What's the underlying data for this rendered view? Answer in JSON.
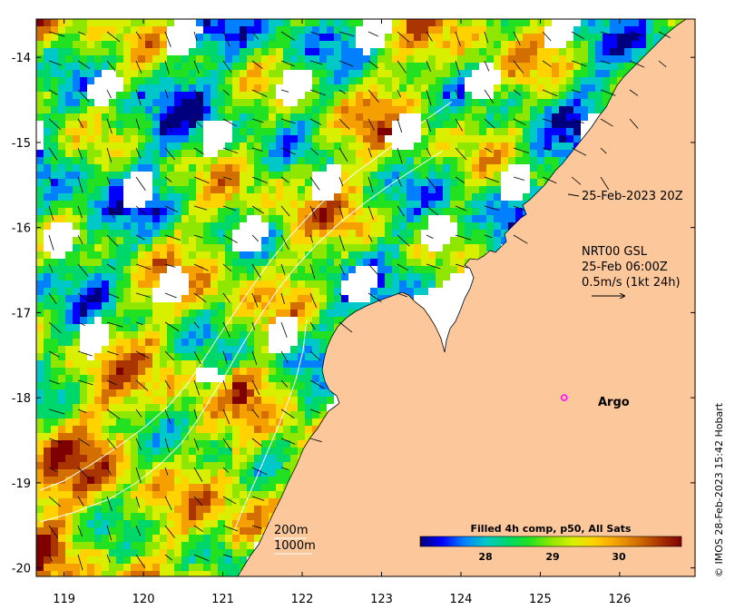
{
  "map": {
    "x_axis": {
      "ticks": [
        {
          "value": 119,
          "label": "119"
        },
        {
          "value": 120,
          "label": "120"
        },
        {
          "value": 121,
          "label": "121"
        },
        {
          "value": 122,
          "label": "122"
        },
        {
          "value": 123,
          "label": "123"
        },
        {
          "value": 124,
          "label": "124"
        },
        {
          "value": 125,
          "label": "125"
        },
        {
          "value": 126,
          "label": "126"
        }
      ],
      "range": [
        118.65,
        126.95
      ]
    },
    "y_axis": {
      "ticks": [
        {
          "value": -14,
          "label": "-14"
        },
        {
          "value": -15,
          "label": "-15"
        },
        {
          "value": -16,
          "label": "-16"
        },
        {
          "value": -17,
          "label": "-17"
        },
        {
          "value": -18,
          "label": "-18"
        },
        {
          "value": -19,
          "label": "-19"
        },
        {
          "value": -20,
          "label": "-20"
        }
      ],
      "range": [
        -20.1,
        -13.55
      ]
    },
    "land_color": "#fcc89b",
    "water_nodata_color": "#ffffff",
    "annotations": {
      "timestamp": "25-Feb-2023 20Z",
      "current_product": "NRT00 GSL",
      "current_time": "25-Feb 06:00Z",
      "current_scale": "0.5m/s (1kt 24h)",
      "argo_label": "Argo",
      "argo_position": {
        "lon": 125.3,
        "lat": -18.0
      },
      "argo_color": "#ff00ff",
      "contour_200": "200m",
      "contour_1000": "1000m"
    },
    "colorbar": {
      "title": "Filled 4h comp, p50, All Sats",
      "ticks": [
        "28",
        "29",
        "30"
      ],
      "colors": [
        "#00007f",
        "#0000ff",
        "#007fff",
        "#00c8c8",
        "#00d76b",
        "#21e121",
        "#8fe600",
        "#d8f000",
        "#ffd200",
        "#f5a000",
        "#d26f00",
        "#aa3500",
        "#7f0000"
      ]
    },
    "credit": "© IMOS 28-Feb-2023 15:42 Hobart"
  }
}
